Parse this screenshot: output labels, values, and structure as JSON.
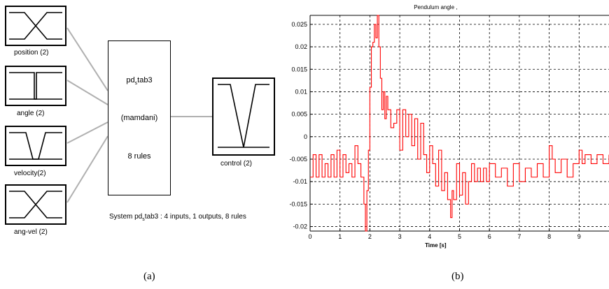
{
  "panel_a": {
    "inputs": [
      {
        "label": "position (2)",
        "shape": "crossing-ramps"
      },
      {
        "label": "angle (2)",
        "shape": "narrow-step"
      },
      {
        "label": "velocity(2)",
        "shape": "funnel"
      },
      {
        "label": "ang-vel (2)",
        "shape": "crossing-ramps"
      }
    ],
    "fis": {
      "name_prefix": "pd",
      "name_sub": "s",
      "name_suffix": "tab3",
      "type": "(mamdani)",
      "rules": "8 rules"
    },
    "output": {
      "label": "control (2)",
      "shape": "v-shape"
    },
    "system": {
      "prefix": "System pd",
      "sub": "s",
      "suffix": "tab3 : 4 inputs, 1 outputs, 8 rules"
    },
    "caption": "(a)"
  },
  "panel_b": {
    "caption": "(b)"
  },
  "chart_data": {
    "type": "line",
    "title": "Pendulum angle ,",
    "xlabel": "Time [s]",
    "ylabel": "",
    "xlim": [
      0,
      10
    ],
    "ylim": [
      -0.021,
      0.027
    ],
    "xticks": [
      0,
      1,
      2,
      3,
      4,
      5,
      6,
      7,
      8,
      9
    ],
    "yticks": [
      -0.02,
      -0.015,
      -0.01,
      -0.005,
      0,
      0.005,
      0.01,
      0.015,
      0.02,
      0.025
    ],
    "ytick_labels": [
      "-0.02",
      "-0.015",
      "-0.01",
      "-0.005",
      "0",
      "0.005",
      "0.01",
      "0.015",
      "0.02",
      "0.025"
    ],
    "grid": true,
    "line_color": "#ff0000",
    "series": [
      {
        "x": [
          0,
          0.1,
          0.2,
          0.3,
          0.4,
          0.5,
          0.6,
          0.7,
          0.8,
          0.9,
          1.0,
          1.1,
          1.2,
          1.3,
          1.4,
          1.5,
          1.6,
          1.7,
          1.8,
          1.85,
          1.9,
          1.95,
          2.0,
          2.05,
          2.1,
          2.15,
          2.2,
          2.25,
          2.3,
          2.35,
          2.4,
          2.45,
          2.5,
          2.55,
          2.6,
          2.7,
          2.8,
          2.9,
          3.0,
          3.1,
          3.2,
          3.3,
          3.4,
          3.5,
          3.6,
          3.7,
          3.8,
          3.9,
          4.0,
          4.1,
          4.2,
          4.3,
          4.4,
          4.5,
          4.6,
          4.7,
          4.75,
          4.8,
          4.9,
          5.0,
          5.1,
          5.2,
          5.3,
          5.4,
          5.5,
          5.6,
          5.7,
          5.8,
          5.9,
          6.0,
          6.2,
          6.4,
          6.6,
          6.8,
          7.0,
          7.2,
          7.4,
          7.6,
          7.8,
          8.0,
          8.1,
          8.2,
          8.4,
          8.6,
          8.8,
          9.0,
          9.1,
          9.2,
          9.4,
          9.6,
          9.8,
          10.0
        ],
        "y": [
          -0.009,
          -0.004,
          -0.009,
          -0.004,
          -0.009,
          -0.006,
          -0.009,
          -0.004,
          -0.009,
          -0.003,
          -0.009,
          -0.004,
          -0.008,
          -0.006,
          -0.009,
          -0.002,
          -0.006,
          -0.009,
          -0.015,
          -0.021,
          -0.012,
          -0.003,
          0.011,
          0.02,
          0.021,
          0.025,
          0.022,
          0.027,
          0.02,
          0.013,
          0.006,
          0.01,
          0.004,
          0.009,
          0.006,
          0.002,
          0.003,
          0.006,
          -0.003,
          0.006,
          0.0,
          0.005,
          -0.002,
          0.004,
          -0.005,
          0.003,
          -0.004,
          -0.008,
          -0.002,
          -0.006,
          -0.011,
          -0.003,
          -0.012,
          -0.008,
          -0.014,
          -0.018,
          -0.012,
          -0.014,
          -0.006,
          -0.013,
          -0.008,
          -0.015,
          -0.01,
          -0.006,
          -0.01,
          -0.007,
          -0.01,
          -0.007,
          -0.01,
          -0.006,
          -0.009,
          -0.007,
          -0.011,
          -0.006,
          -0.01,
          -0.007,
          -0.009,
          -0.006,
          -0.009,
          -0.002,
          -0.005,
          -0.008,
          -0.005,
          -0.009,
          -0.006,
          -0.003,
          -0.006,
          -0.004,
          -0.006,
          -0.004,
          -0.006,
          -0.004
        ]
      }
    ]
  }
}
